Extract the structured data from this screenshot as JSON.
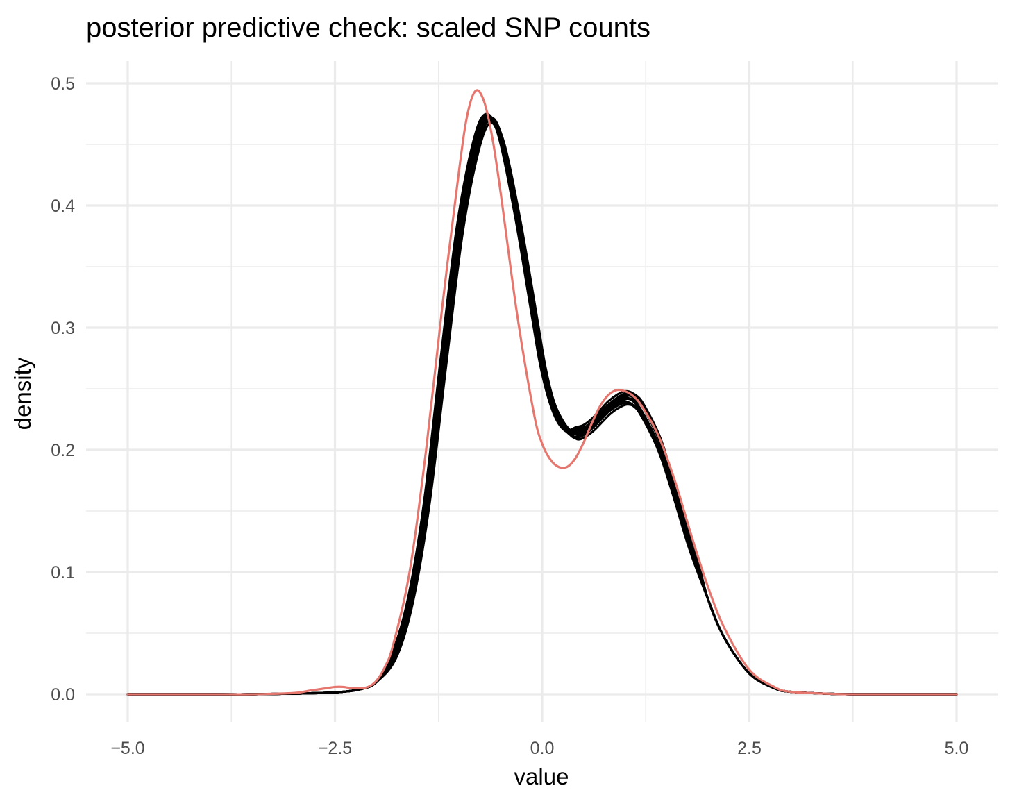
{
  "chart_data": {
    "type": "line",
    "title": "posterior predictive check: scaled SNP counts",
    "xlabel": "value",
    "ylabel": "density",
    "xlim": [
      -5.0,
      5.0
    ],
    "ylim": [
      0.0,
      0.5
    ],
    "x_ticks": [
      -5.0,
      -2.5,
      0.0,
      2.5,
      5.0
    ],
    "x_tick_labels": [
      "−5.0",
      "−2.5",
      "0.0",
      "2.5",
      "5.0"
    ],
    "y_ticks": [
      0.0,
      0.1,
      0.2,
      0.3,
      0.4,
      0.5
    ],
    "y_tick_labels": [
      "0.0",
      "0.1",
      "0.2",
      "0.3",
      "0.4",
      "0.5"
    ],
    "grid": true,
    "legend": "none",
    "colors": {
      "observed": "#e5776f",
      "replicates": "#000000",
      "grid": "#ebebeb"
    },
    "replicate_count": 10,
    "replicate_variation": [
      {
        "peak_shift": 0.0,
        "peak_scale": 1.0,
        "bump_scale": 1.0
      },
      {
        "peak_shift": 0.02,
        "peak_scale": 0.995,
        "bump_scale": 1.01
      },
      {
        "peak_shift": -0.02,
        "peak_scale": 1.004,
        "bump_scale": 0.99
      },
      {
        "peak_shift": 0.03,
        "peak_scale": 0.99,
        "bump_scale": 1.02
      },
      {
        "peak_shift": -0.01,
        "peak_scale": 1.002,
        "bump_scale": 0.985
      },
      {
        "peak_shift": 0.01,
        "peak_scale": 0.998,
        "bump_scale": 1.015
      },
      {
        "peak_shift": 0.04,
        "peak_scale": 0.992,
        "bump_scale": 1.0
      },
      {
        "peak_shift": -0.03,
        "peak_scale": 1.006,
        "bump_scale": 1.005
      },
      {
        "peak_shift": 0.02,
        "peak_scale": 1.0,
        "bump_scale": 0.98
      },
      {
        "peak_shift": 0.0,
        "peak_scale": 0.994,
        "bump_scale": 1.025
      }
    ],
    "replicate_base": {
      "x": [
        -5.0,
        -4.0,
        -3.5,
        -3.0,
        -2.5,
        -2.2,
        -2.0,
        -1.8,
        -1.6,
        -1.4,
        -1.2,
        -1.0,
        -0.8,
        -0.65,
        -0.5,
        -0.3,
        -0.1,
        0.0,
        0.1,
        0.2,
        0.3,
        0.4,
        0.5,
        0.6,
        0.7,
        0.8,
        0.9,
        1.0,
        1.1,
        1.2,
        1.4,
        1.6,
        1.8,
        2.0,
        2.2,
        2.5,
        2.8,
        3.0,
        3.5,
        4.0,
        5.0
      ],
      "y": [
        0.0,
        0.0,
        0.0,
        0.0005,
        0.0015,
        0.004,
        0.01,
        0.03,
        0.075,
        0.155,
        0.27,
        0.38,
        0.45,
        0.472,
        0.455,
        0.39,
        0.31,
        0.27,
        0.242,
        0.225,
        0.216,
        0.213,
        0.215,
        0.22,
        0.227,
        0.234,
        0.239,
        0.242,
        0.24,
        0.232,
        0.205,
        0.165,
        0.12,
        0.078,
        0.046,
        0.017,
        0.005,
        0.002,
        0.0003,
        0.0,
        0.0
      ]
    },
    "observed": {
      "name": "",
      "x": [
        -5.0,
        -4.0,
        -3.5,
        -3.0,
        -2.8,
        -2.6,
        -2.5,
        -2.4,
        -2.3,
        -2.2,
        -2.1,
        -2.0,
        -1.9,
        -1.8,
        -1.6,
        -1.4,
        -1.2,
        -1.0,
        -0.9,
        -0.8,
        -0.7,
        -0.6,
        -0.5,
        -0.3,
        -0.1,
        0.0,
        0.1,
        0.2,
        0.3,
        0.4,
        0.5,
        0.6,
        0.7,
        0.8,
        0.9,
        1.0,
        1.1,
        1.2,
        1.4,
        1.6,
        1.8,
        2.0,
        2.2,
        2.5,
        2.8,
        3.0,
        3.5,
        4.0,
        5.0
      ],
      "y": [
        0.0,
        0.0,
        0.0,
        0.001,
        0.003,
        0.005,
        0.006,
        0.006,
        0.005,
        0.005,
        0.006,
        0.011,
        0.022,
        0.04,
        0.1,
        0.2,
        0.32,
        0.43,
        0.475,
        0.494,
        0.485,
        0.455,
        0.41,
        0.31,
        0.23,
        0.205,
        0.192,
        0.186,
        0.186,
        0.193,
        0.206,
        0.222,
        0.236,
        0.245,
        0.249,
        0.248,
        0.244,
        0.236,
        0.212,
        0.175,
        0.13,
        0.088,
        0.054,
        0.02,
        0.006,
        0.002,
        0.0003,
        0.0,
        0.0
      ]
    }
  }
}
